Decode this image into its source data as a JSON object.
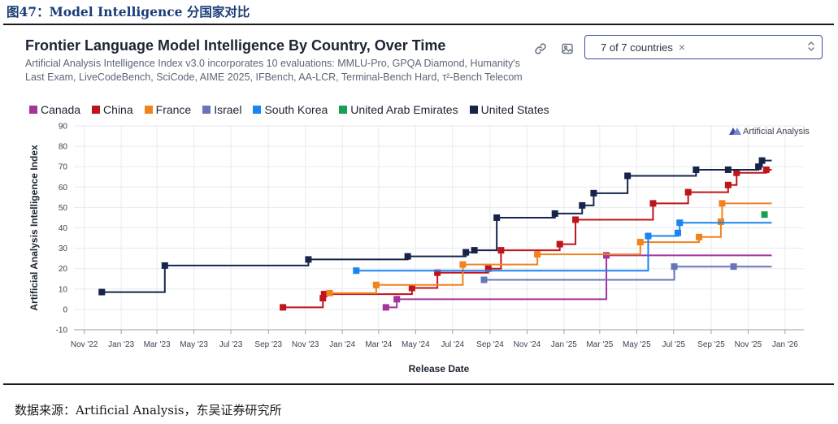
{
  "figure_caption": "图47：Model Intelligence 分国家对比",
  "source_note": "数据来源：Artificial Analysis，东吴证券研究所",
  "controls": {
    "link_icon": "link-icon",
    "image_icon": "image-download-icon",
    "country_selector_value": "7 of 7 countries",
    "clear_icon": "×",
    "updown_icon": "chevron-updown-icon"
  },
  "watermark": "Artificial Analysis",
  "colors": {
    "Canada": "#a3349a",
    "China": "#c0141b",
    "France": "#f0831e",
    "Israel": "#6676b8",
    "South Korea": "#1a84ef",
    "United Arab Emirates": "#1a9e4f",
    "United States": "#16244a"
  },
  "chart_data": {
    "type": "line",
    "step": true,
    "title": "Frontier Language Model Intelligence By Country, Over Time",
    "subtitle": "Artificial Analysis Intelligence Index v3.0 incorporates 10 evaluations: MMLU-Pro, GPQA Diamond, Humanity's Last Exam, LiveCodeBench, SciCode, AIME 2025, IFBench, AA-LCR, Terminal-Bench Hard, τ²-Bench Telecom",
    "xlabel": "Release Date",
    "ylabel": "Artificial Analysis Intelligence Index",
    "xlim": [
      "2022-10-15",
      "2026-02-01"
    ],
    "ylim": [
      -10,
      90
    ],
    "yticks": [
      -10,
      0,
      10,
      20,
      30,
      40,
      50,
      60,
      70,
      80,
      90
    ],
    "xticks": [
      {
        "date": "2022-11-01",
        "label": "Nov '22"
      },
      {
        "date": "2023-01-01",
        "label": "Jan '23"
      },
      {
        "date": "2023-03-01",
        "label": "Mar '23"
      },
      {
        "date": "2023-05-01",
        "label": "May '23"
      },
      {
        "date": "2023-07-01",
        "label": "Jul '23"
      },
      {
        "date": "2023-09-01",
        "label": "Sep '23"
      },
      {
        "date": "2023-11-01",
        "label": "Nov '23"
      },
      {
        "date": "2024-01-01",
        "label": "Jan '24"
      },
      {
        "date": "2024-03-01",
        "label": "Mar '24"
      },
      {
        "date": "2024-05-01",
        "label": "May '24"
      },
      {
        "date": "2024-07-01",
        "label": "Jul '24"
      },
      {
        "date": "2024-09-01",
        "label": "Sep '24"
      },
      {
        "date": "2024-11-01",
        "label": "Nov '24"
      },
      {
        "date": "2025-01-01",
        "label": "Jan '25"
      },
      {
        "date": "2025-03-01",
        "label": "Mar '25"
      },
      {
        "date": "2025-05-01",
        "label": "May '25"
      },
      {
        "date": "2025-07-01",
        "label": "Jul '25"
      },
      {
        "date": "2025-09-01",
        "label": "Sep '25"
      },
      {
        "date": "2025-11-01",
        "label": "Nov '25"
      },
      {
        "date": "2026-01-01",
        "label": "Jan '26"
      }
    ],
    "series": [
      {
        "name": "Canada",
        "points": [
          [
            "2024-03-13",
            1
          ],
          [
            "2024-03-31",
            5
          ],
          [
            "2025-03-12",
            26.5
          ]
        ]
      },
      {
        "name": "China",
        "points": [
          [
            "2023-09-25",
            1
          ],
          [
            "2023-11-30",
            5.5
          ],
          [
            "2023-12-02",
            7.5
          ],
          [
            "2024-04-25",
            10.5
          ],
          [
            "2024-06-06",
            18
          ],
          [
            "2024-08-29",
            20
          ],
          [
            "2024-09-19",
            29
          ],
          [
            "2024-12-25",
            32
          ],
          [
            "2025-01-20",
            44
          ],
          [
            "2025-05-28",
            52
          ],
          [
            "2025-07-25",
            57.5
          ],
          [
            "2025-09-29",
            61
          ],
          [
            "2025-10-13",
            67
          ],
          [
            "2025-12-01",
            68.5
          ]
        ]
      },
      {
        "name": "France",
        "points": [
          [
            "2023-12-11",
            8
          ],
          [
            "2024-02-26",
            12
          ],
          [
            "2024-07-18",
            22
          ],
          [
            "2024-11-18",
            27
          ],
          [
            "2025-05-07",
            33
          ],
          [
            "2025-08-12",
            35.5
          ],
          [
            "2025-09-17",
            43
          ],
          [
            "2025-09-19",
            52
          ]
        ]
      },
      {
        "name": "Israel",
        "points": [
          [
            "2024-08-22",
            14.5
          ],
          [
            "2025-07-02",
            21
          ],
          [
            "2025-10-08",
            21
          ]
        ]
      },
      {
        "name": "South Korea",
        "points": [
          [
            "2024-01-24",
            19
          ],
          [
            "2025-05-20",
            36
          ],
          [
            "2025-07-08",
            37.5
          ],
          [
            "2025-07-11",
            42.5
          ]
        ]
      },
      {
        "name": "United Arab Emirates",
        "points": [
          [
            "2025-11-28",
            46.5
          ]
        ]
      },
      {
        "name": "United States",
        "points": [
          [
            "2022-11-30",
            8.5
          ],
          [
            "2023-03-14",
            21.5
          ],
          [
            "2023-11-06",
            24.5
          ],
          [
            "2024-04-18",
            26
          ],
          [
            "2024-07-23",
            28
          ],
          [
            "2024-08-06",
            29
          ],
          [
            "2024-09-12",
            45
          ],
          [
            "2024-12-17",
            47
          ],
          [
            "2025-01-31",
            51
          ],
          [
            "2025-02-19",
            57
          ],
          [
            "2025-04-16",
            65.5
          ],
          [
            "2025-08-07",
            68.5
          ],
          [
            "2025-09-29",
            68.5
          ],
          [
            "2025-11-18",
            70
          ],
          [
            "2025-11-24",
            73
          ]
        ]
      }
    ],
    "legend": [
      "Canada",
      "China",
      "France",
      "Israel",
      "South Korea",
      "United Arab Emirates",
      "United States"
    ],
    "legend_position": "top-left",
    "grid": true
  }
}
